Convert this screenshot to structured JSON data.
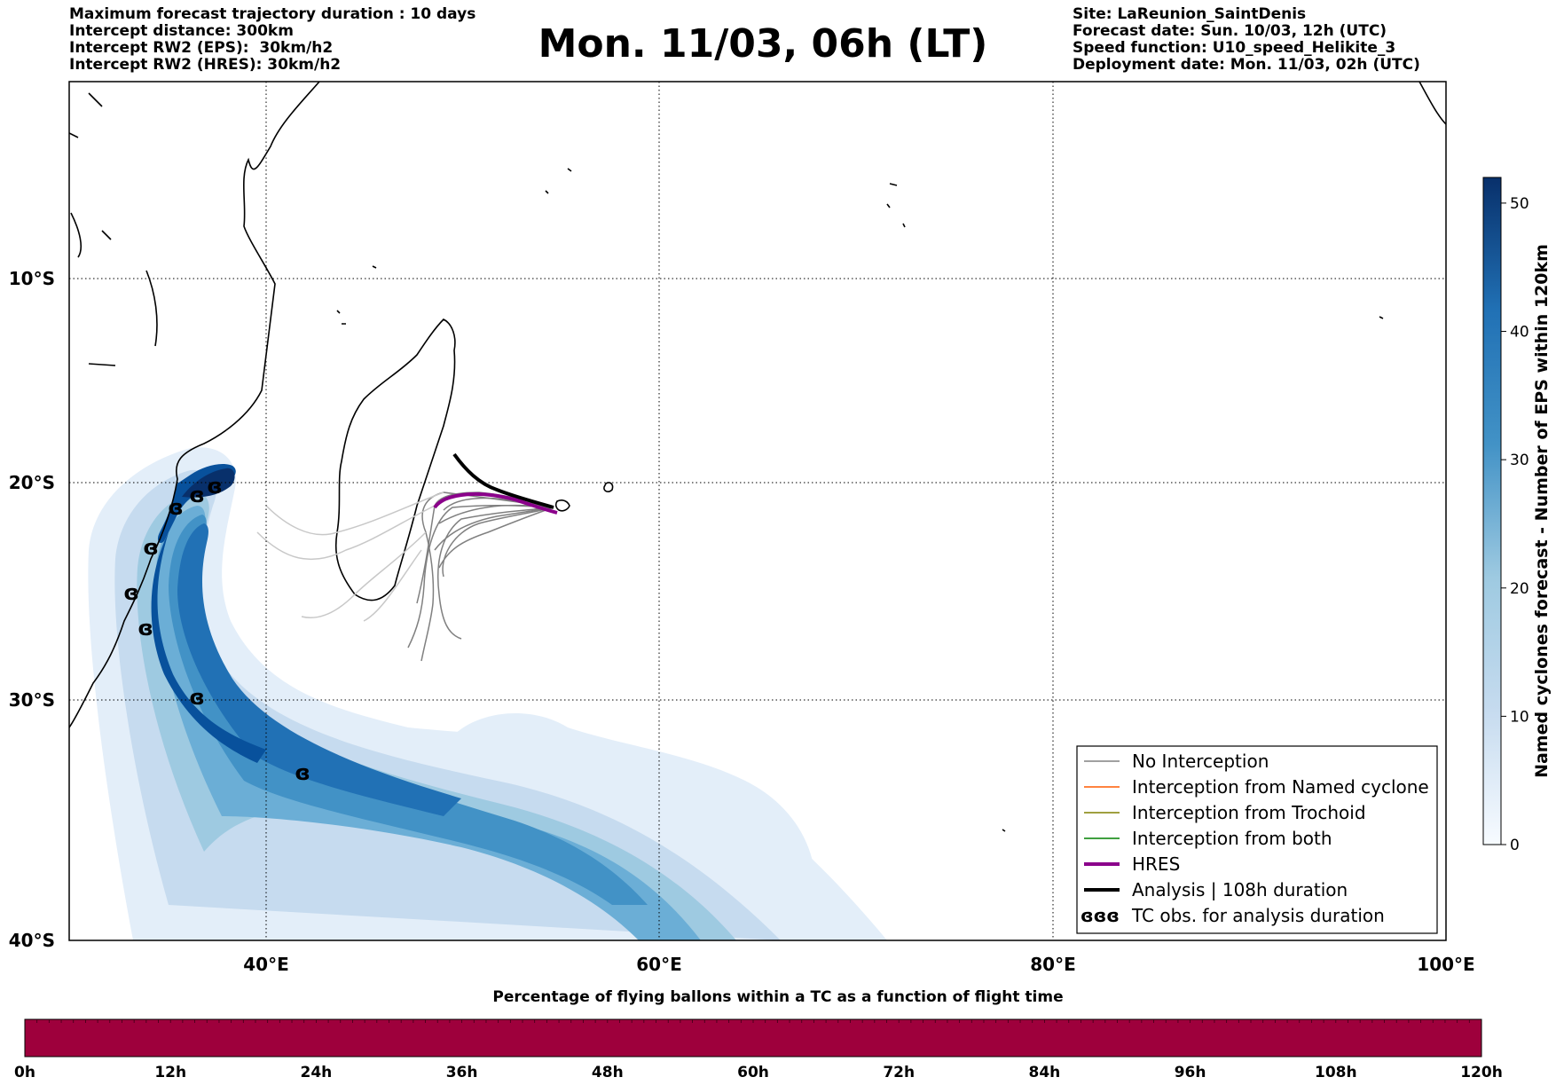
{
  "header_left": [
    "Maximum forecast trajectory duration : 10 days",
    "Intercept distance: 300km",
    "Intercept RW2 (EPS):  30km/h2",
    "Intercept RW2 (HRES): 30km/h2"
  ],
  "header_right": [
    "Site: LaReunion_SaintDenis",
    "Forecast date: Sun. 10/03, 12h (UTC)",
    "Speed function: U10_speed_Helikite_3",
    "Deployment date: Mon. 11/03, 02h (UTC)"
  ],
  "title": "Mon. 11/03, 06h (LT)",
  "map": {
    "lon_range": [
      30,
      100
    ],
    "lat_range": [
      -40,
      0
    ],
    "lon_ticks": [
      "40°E",
      "60°E",
      "80°E",
      "100°E"
    ],
    "lat_ticks": [
      "10°S",
      "20°S",
      "30°S",
      "40°S"
    ],
    "grid": "dotted"
  },
  "colorbar_right": {
    "label": "Named cyclones forecast - Number of EPS within 120km",
    "ticks": [
      "0",
      "10",
      "20",
      "30",
      "40",
      "50"
    ],
    "range": [
      0,
      52
    ],
    "colormap": "Blues"
  },
  "legend": {
    "items": [
      {
        "label": "No Interception",
        "color": "#808080"
      },
      {
        "label": "Interception from Named cyclone",
        "color": "#ff5a00"
      },
      {
        "label": "Interception from Trochoid",
        "color": "#808000"
      },
      {
        "label": "Interception from both",
        "color": "#008000"
      },
      {
        "label": "HRES",
        "color": "#8b008b"
      },
      {
        "label": "Analysis | 108h duration",
        "color": "#000000"
      },
      {
        "label": "TC obs. for analysis duration",
        "color": "#000000"
      }
    ],
    "placement": "lower-right"
  },
  "tc_symbol": "ɞ",
  "bottom_bar": {
    "title": "Percentage of flying ballons within a TC as a function of flight time",
    "ticks": [
      "0h",
      "12h",
      "24h",
      "36h",
      "48h",
      "60h",
      "72h",
      "84h",
      "96h",
      "108h",
      "120h"
    ],
    "color": "#9e003c"
  }
}
